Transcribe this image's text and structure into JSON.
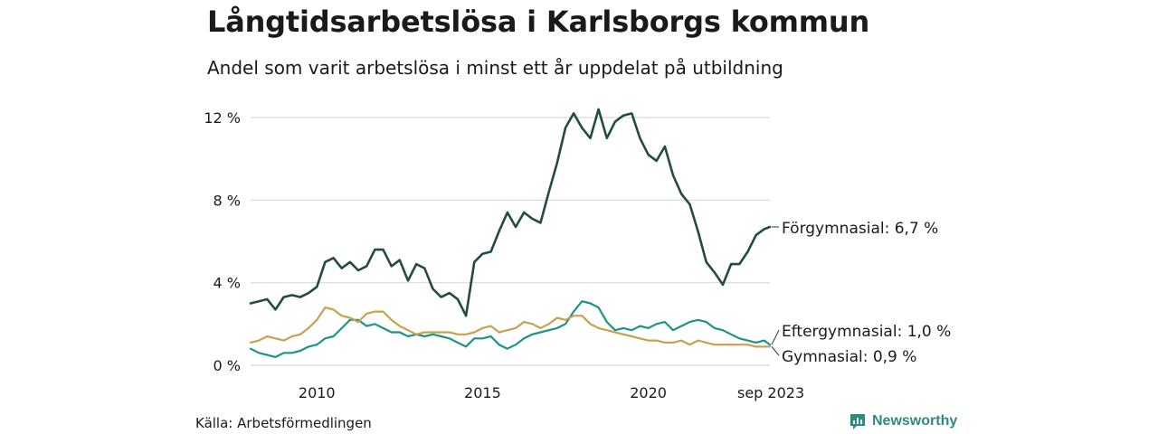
{
  "title": "Långtidsarbetslösa i Karlsborgs kommun",
  "subtitle": "Andel som varit arbetslösa i minst ett år uppdelat på utbildning",
  "source": "Källa: Arbetsförmedlingen",
  "brand": "Newsworthy",
  "colors": {
    "forgymnasial": "#234b44",
    "eftergymnasial": "#1a9485",
    "gymnasial": "#c9a04d",
    "grid": "#d9d9d9",
    "brand": "#2f8a82"
  },
  "chart_data": {
    "type": "line",
    "title": "Långtidsarbetslösa i Karlsborgs kommun",
    "subtitle": "Andel som varit arbetslösa i minst ett år uppdelat på utbildning",
    "xlabel": "",
    "ylabel": "",
    "x_start": 2008.0,
    "x_end": 2023.67,
    "x_step": 0.25,
    "xlim": [
      2008.0,
      2023.67
    ],
    "ylim": [
      0,
      12.5
    ],
    "y_ticks": [
      {
        "value": 0,
        "label": "0 %"
      },
      {
        "value": 4,
        "label": "4 %"
      },
      {
        "value": 8,
        "label": "8 %"
      },
      {
        "value": 12,
        "label": "12 %"
      }
    ],
    "x_ticks": [
      {
        "value": 2010,
        "label": "2010"
      },
      {
        "value": 2015,
        "label": "2015"
      },
      {
        "value": 2020,
        "label": "2020"
      },
      {
        "value": 2023.67,
        "label": "sep 2023"
      }
    ],
    "grid": true,
    "series": [
      {
        "name": "Förgymnasial",
        "label": "Förgymnasial: 6,7 %",
        "color_key": "forgymnasial",
        "values": [
          3.0,
          3.1,
          3.2,
          2.7,
          3.3,
          3.4,
          3.3,
          3.5,
          3.8,
          5.0,
          5.2,
          4.7,
          5.0,
          4.6,
          4.8,
          5.6,
          5.6,
          4.8,
          5.1,
          4.1,
          4.9,
          4.7,
          3.7,
          3.3,
          3.5,
          3.2,
          2.4,
          5.0,
          5.4,
          5.5,
          6.5,
          7.4,
          6.7,
          7.4,
          7.1,
          6.9,
          8.4,
          9.8,
          11.5,
          12.2,
          11.5,
          11.0,
          12.4,
          11.0,
          11.8,
          12.1,
          12.2,
          11.0,
          10.2,
          9.9,
          10.6,
          9.2,
          8.3,
          7.8,
          6.5,
          5.0,
          4.5,
          3.9,
          4.9,
          4.9,
          5.5,
          6.3,
          6.6,
          6.7
        ]
      },
      {
        "name": "Eftergymnasial",
        "label": "Eftergymnasial: 1,0 %",
        "color_key": "eftergymnasial",
        "values": [
          0.8,
          0.6,
          0.5,
          0.4,
          0.6,
          0.6,
          0.7,
          0.9,
          1.0,
          1.3,
          1.4,
          1.8,
          2.2,
          2.2,
          1.9,
          2.0,
          1.8,
          1.6,
          1.6,
          1.4,
          1.5,
          1.4,
          1.5,
          1.4,
          1.3,
          1.1,
          0.9,
          1.3,
          1.3,
          1.4,
          1.0,
          0.8,
          1.0,
          1.3,
          1.5,
          1.6,
          1.7,
          1.8,
          2.0,
          2.6,
          3.1,
          3.0,
          2.8,
          2.1,
          1.7,
          1.8,
          1.7,
          1.9,
          1.8,
          2.0,
          2.1,
          1.7,
          1.9,
          2.1,
          2.2,
          2.1,
          1.8,
          1.7,
          1.5,
          1.3,
          1.2,
          1.1,
          1.2,
          1.0
        ]
      },
      {
        "name": "Gymnasial",
        "label": "Gymnasial: 0,9 %",
        "color_key": "gymnasial",
        "values": [
          1.1,
          1.2,
          1.4,
          1.3,
          1.2,
          1.4,
          1.5,
          1.8,
          2.2,
          2.8,
          2.7,
          2.4,
          2.3,
          2.1,
          2.5,
          2.6,
          2.6,
          2.2,
          1.9,
          1.7,
          1.5,
          1.6,
          1.6,
          1.6,
          1.6,
          1.5,
          1.5,
          1.6,
          1.8,
          1.9,
          1.6,
          1.7,
          1.8,
          2.1,
          2.0,
          1.8,
          2.0,
          2.3,
          2.2,
          2.4,
          2.4,
          2.0,
          1.8,
          1.7,
          1.6,
          1.5,
          1.4,
          1.3,
          1.2,
          1.2,
          1.1,
          1.1,
          1.2,
          1.0,
          1.2,
          1.1,
          1.0,
          1.0,
          1.0,
          1.0,
          1.0,
          0.9,
          0.9,
          0.9
        ]
      }
    ]
  }
}
